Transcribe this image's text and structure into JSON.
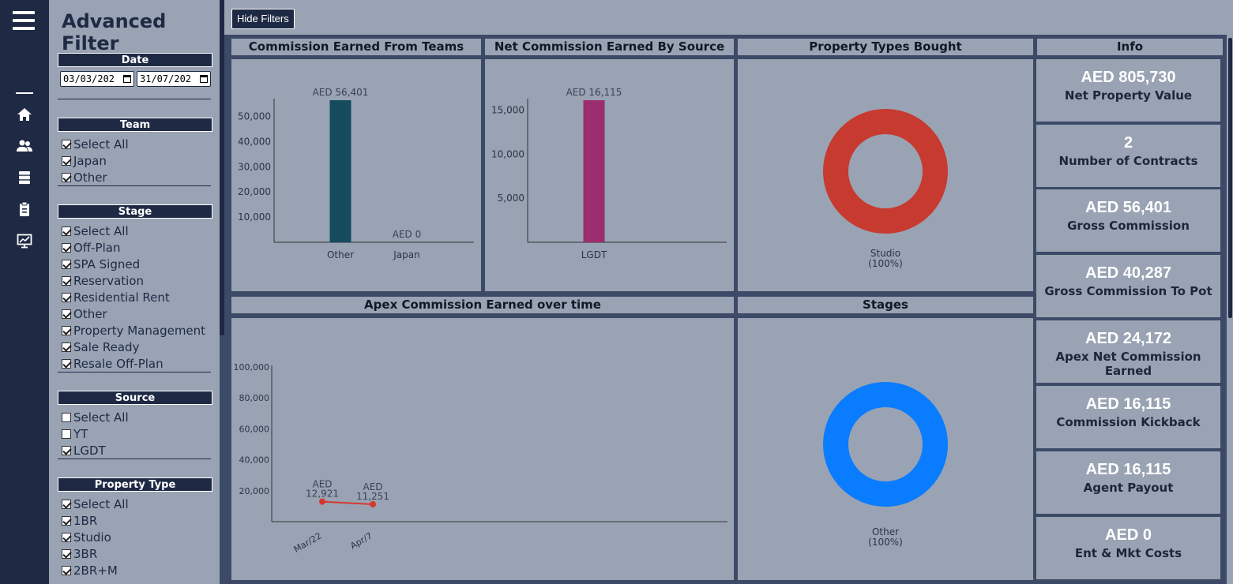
{
  "filters": {
    "title": "Advanced Filter",
    "date": {
      "label": "Date",
      "from": "03/03/202",
      "to": "31/07/202"
    },
    "team": {
      "label": "Team",
      "options": [
        {
          "label": "Select All",
          "checked": true
        },
        {
          "label": "Japan",
          "checked": true
        },
        {
          "label": "Other",
          "checked": true
        }
      ]
    },
    "stage": {
      "label": "Stage",
      "options": [
        {
          "label": "Select All",
          "checked": true
        },
        {
          "label": "Off-Plan",
          "checked": true
        },
        {
          "label": "SPA Signed",
          "checked": true
        },
        {
          "label": "Reservation",
          "checked": true
        },
        {
          "label": "Residential Rent",
          "checked": true
        },
        {
          "label": "Other",
          "checked": true
        },
        {
          "label": "Property Management",
          "checked": true
        },
        {
          "label": "Sale Ready",
          "checked": true
        },
        {
          "label": "Resale Off-Plan",
          "checked": true
        }
      ]
    },
    "source": {
      "label": "Source",
      "options": [
        {
          "label": "Select All",
          "checked": false
        },
        {
          "label": "YT",
          "checked": false
        },
        {
          "label": "LGDT",
          "checked": true
        }
      ]
    },
    "property_type": {
      "label": "Property Type",
      "options": [
        {
          "label": "Select All",
          "checked": true
        },
        {
          "label": "1BR",
          "checked": true
        },
        {
          "label": "Studio",
          "checked": true
        },
        {
          "label": "3BR",
          "checked": true
        },
        {
          "label": "2BR+M",
          "checked": true
        }
      ]
    }
  },
  "toolbar": {
    "hide_filters": "Hide Filters"
  },
  "panels": {
    "teams": "Commission Earned From Teams",
    "source": "Net Commission Earned By Source",
    "property": "Property Types Bought",
    "info": "Info",
    "apex": "Apex Commission Earned over time",
    "stages": "Stages"
  },
  "info_cards": [
    {
      "value": "AED 805,730",
      "label": "Net Property Value"
    },
    {
      "value": "2",
      "label": "Number of Contracts"
    },
    {
      "value": "AED 56,401",
      "label": "Gross Commission"
    },
    {
      "value": "AED 40,287",
      "label": "Gross Commission To Pot"
    },
    {
      "value": "AED 24,172",
      "label": "Apex Net Commission Earned"
    },
    {
      "value": "AED 16,115",
      "label": "Commission Kickback"
    },
    {
      "value": "AED 16,115",
      "label": "Agent Payout"
    },
    {
      "value": "AED 0",
      "label": "Ent & Mkt Costs"
    }
  ],
  "chart_data": [
    {
      "id": "teams",
      "type": "bar",
      "title": "Commission Earned From Teams",
      "categories": [
        "Other",
        "Japan"
      ],
      "values": [
        56401,
        0
      ],
      "data_labels": [
        "AED 56,401",
        "AED 0"
      ],
      "ylim": [
        0,
        56401
      ],
      "yticks": [
        10000,
        20000,
        30000,
        40000,
        50000
      ],
      "ytick_labels": [
        "10,000",
        "20,000",
        "30,000",
        "40,000",
        "50,000"
      ],
      "color": "#154b5e"
    },
    {
      "id": "source",
      "type": "bar",
      "title": "Net Commission Earned By Source",
      "categories": [
        "LGDT"
      ],
      "values": [
        16115
      ],
      "data_labels": [
        "AED 16,115"
      ],
      "ylim": [
        0,
        16115
      ],
      "yticks": [
        5000,
        10000,
        15000
      ],
      "ytick_labels": [
        "5,000",
        "10,000",
        "15,000"
      ],
      "color": "#9c2d6f"
    },
    {
      "id": "property",
      "type": "pie",
      "title": "Property Types Bought",
      "labels": [
        "Studio"
      ],
      "values": [
        100
      ],
      "data_labels": [
        "(100%)"
      ],
      "colors": [
        "#c63a30"
      ]
    },
    {
      "id": "apex",
      "type": "line",
      "title": "Apex Commission Earned over time",
      "x": [
        "Mar/22",
        "Apr/7"
      ],
      "values": [
        12921,
        11251
      ],
      "data_labels": [
        [
          "AED",
          "12,921"
        ],
        [
          "AED",
          "11,251"
        ]
      ],
      "ylim": [
        0,
        100000
      ],
      "yticks": [
        20000,
        40000,
        60000,
        80000,
        100000
      ],
      "ytick_labels": [
        "20,000",
        "40,000",
        "60,000",
        "80,000",
        "100,000"
      ],
      "color": "#d6372c"
    },
    {
      "id": "stages",
      "type": "pie",
      "title": "Stages",
      "labels": [
        "Other"
      ],
      "values": [
        100
      ],
      "data_labels": [
        "(100%)"
      ],
      "colors": [
        "#0a7cff"
      ]
    }
  ]
}
